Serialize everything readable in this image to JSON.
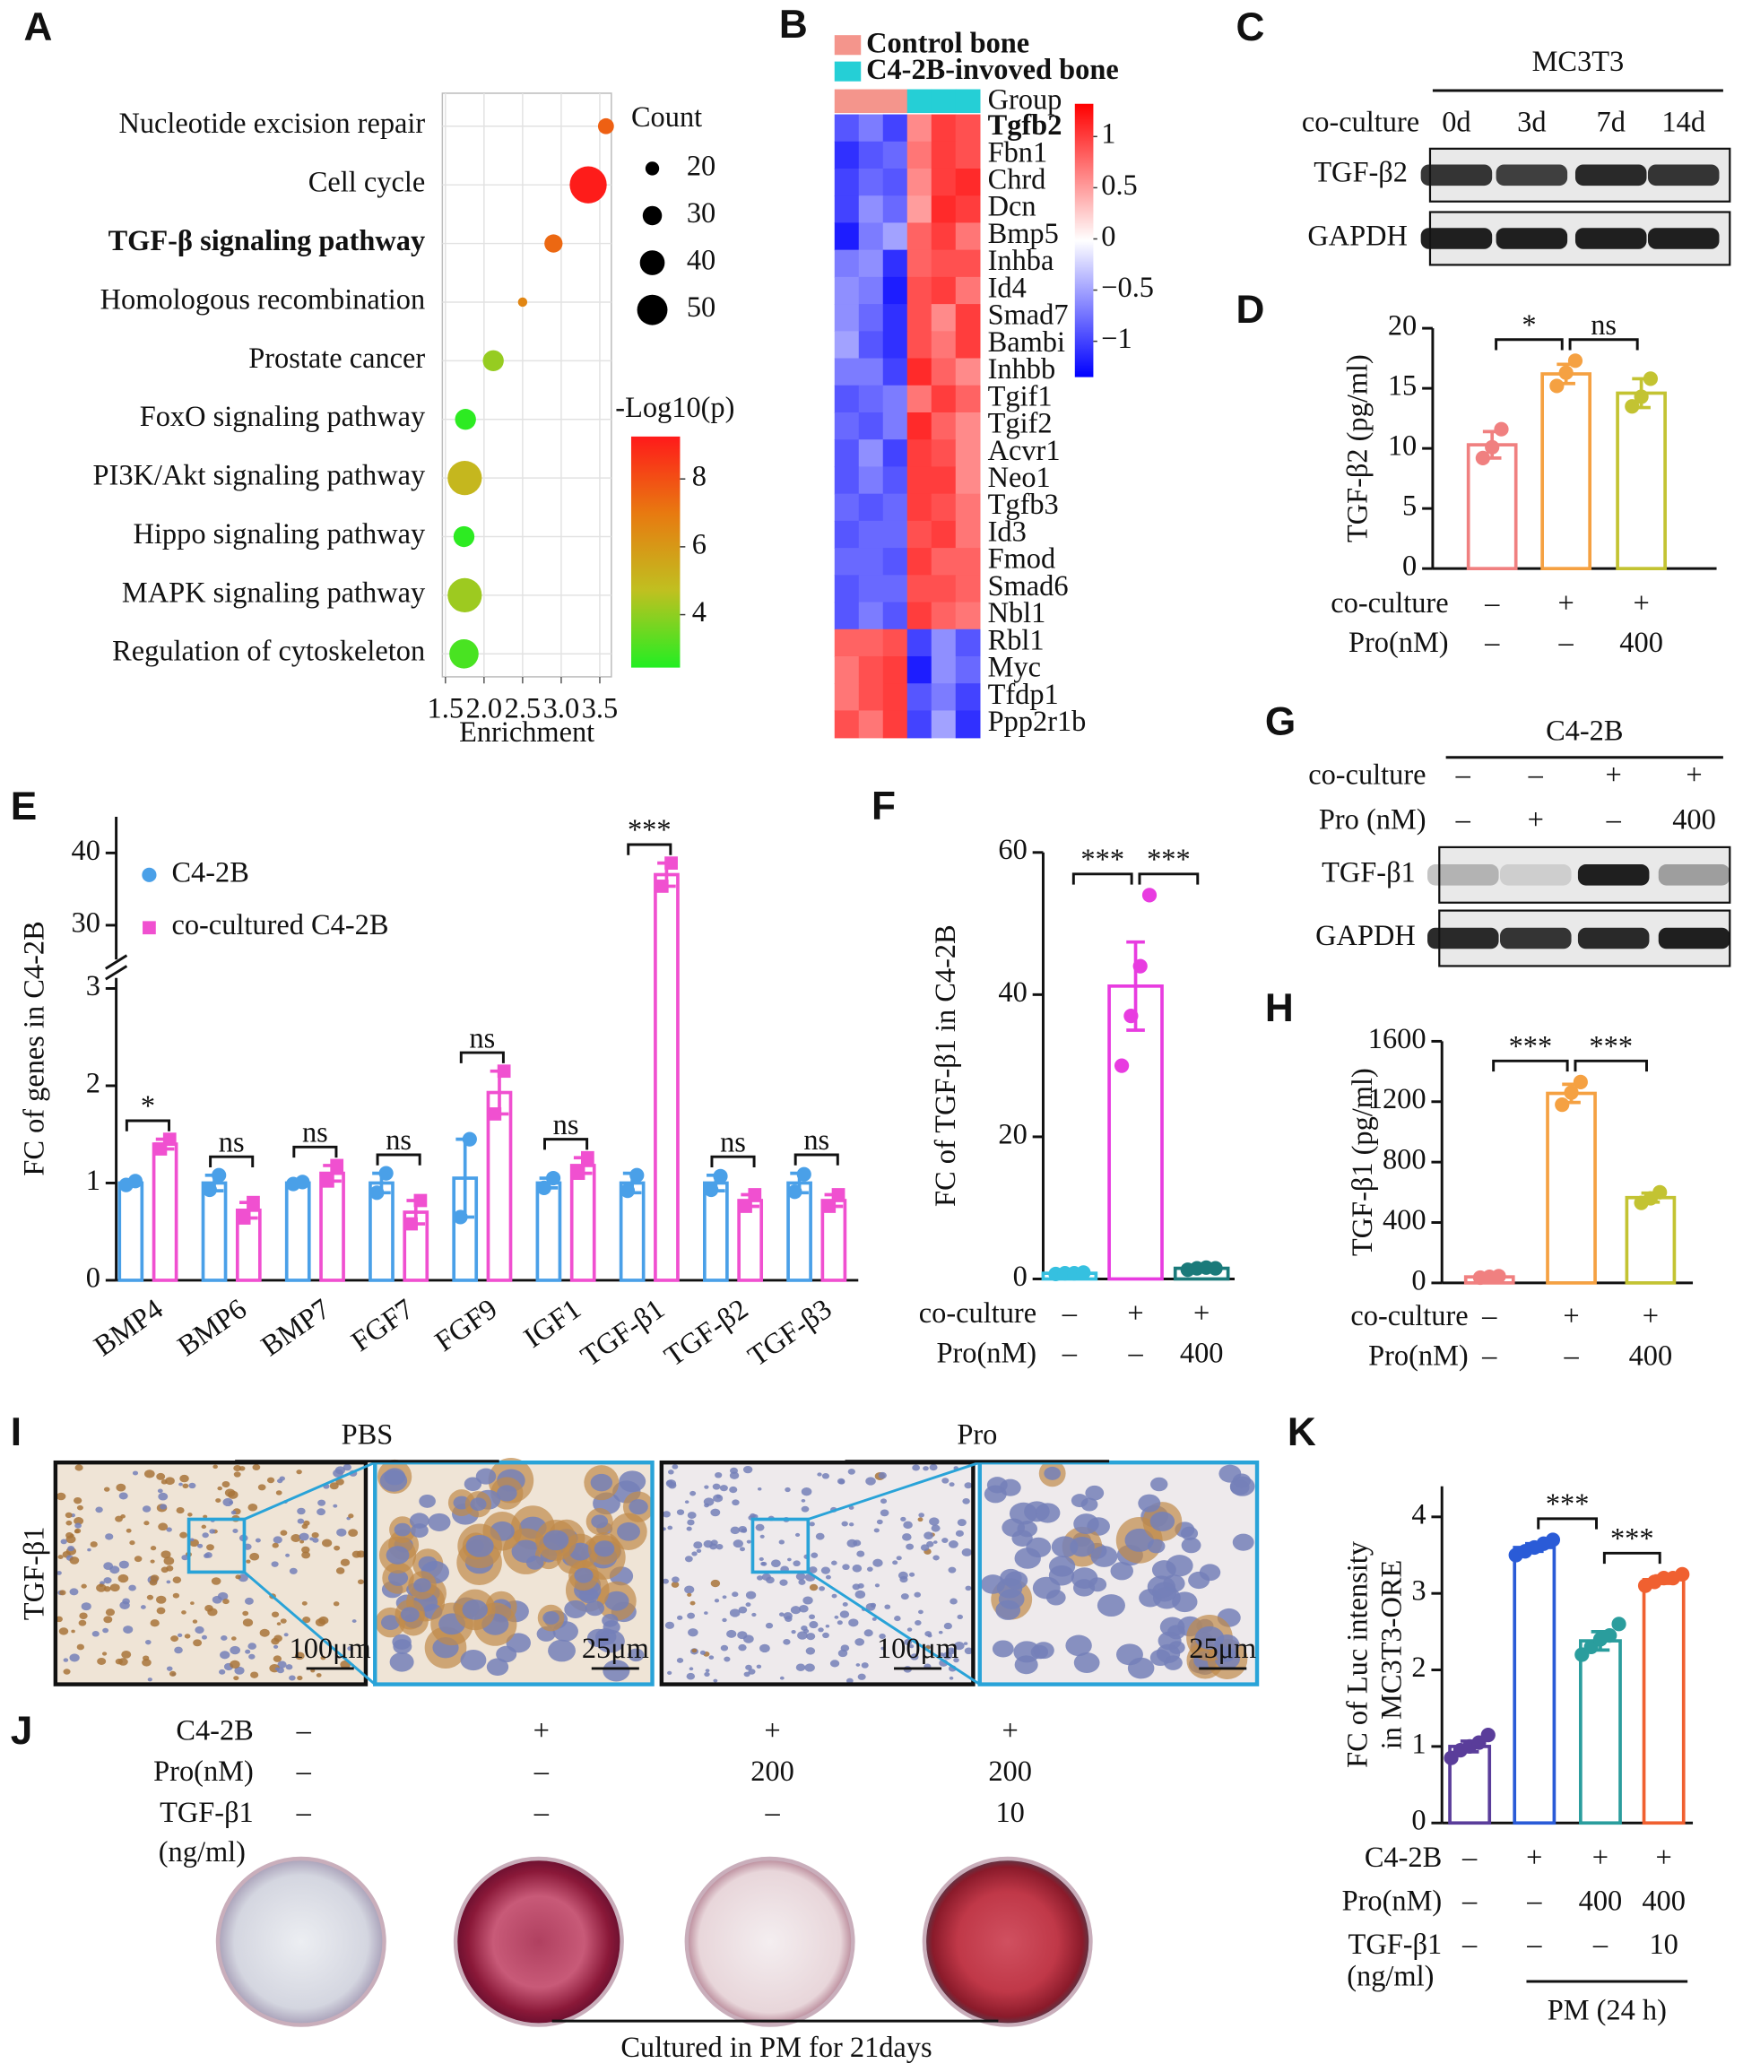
{
  "chart_data": [
    {
      "panel": "A",
      "type": "bubble",
      "categories": [
        "Nucleotide excision repair",
        "Cell cycle",
        "TGF-β signaling pathway",
        "Homologous recombination",
        "Prostate cancer",
        "FoxO signaling pathway",
        "PI3K/Akt signaling pathway",
        "Hippo signaling pathway",
        "MAPK signaling pathway",
        "Regulation of cytoskeleton"
      ],
      "x": [
        3.58,
        3.35,
        2.9,
        2.5,
        2.12,
        1.76,
        1.75,
        1.74,
        1.75,
        1.74
      ],
      "sizes": [
        24,
        62,
        28,
        12,
        33,
        33,
        57,
        33,
        57,
        48
      ],
      "neglog10p": [
        7.6,
        9.2,
        7.4,
        6.6,
        4.1,
        2.6,
        5.0,
        2.6,
        4.2,
        3.0
      ],
      "xlabel": "Enrichment",
      "xlim": [
        1.46,
        3.65
      ],
      "xticks": [
        1.5,
        {
          "value": 2,
          "label": "2.0"
        },
        2.5,
        {
          "value": 3,
          "label": "3.0"
        },
        3.5
      ],
      "size_title": "Count",
      "size_legend": [
        20,
        30,
        40,
        50
      ],
      "color_title": "-Log10(p)",
      "clim": [
        2.44,
        9.25
      ],
      "cticks": [
        4,
        6,
        8
      ],
      "cmap": [
        "#22ee22",
        "#c0c020",
        "#e87a10",
        "#ff1a1a"
      ],
      "grid": true,
      "highlight": [
        2
      ],
      "highlight_color": "#c8102e"
    },
    {
      "panel": "B",
      "type": "heatmap",
      "rows": [
        "Tgfb2",
        "Fbn1",
        "Chrd",
        "Dcn",
        "Bmp5",
        "Inhba",
        "Id4",
        "Smad7",
        "Bambi",
        "Inhbb",
        "Tgif1",
        "Tgif2",
        "Acvr1",
        "Neo1",
        "Tgfb3",
        "Id3",
        "Fmod",
        "Smad6",
        "Nbl1",
        "Rbl1",
        "Myc",
        "Tfdp1",
        "Ppp2r1b"
      ],
      "values": [
        [
          -0.9,
          -0.7,
          -1.0,
          0.6,
          1.0,
          0.9
        ],
        [
          -1.1,
          -0.9,
          -0.8,
          0.7,
          1.0,
          0.9
        ],
        [
          -1.0,
          -0.8,
          -0.9,
          0.6,
          1.0,
          1.1
        ],
        [
          -1.0,
          -0.6,
          -0.8,
          0.5,
          1.1,
          1.0
        ],
        [
          -1.2,
          -0.7,
          -0.5,
          0.8,
          1.0,
          0.7
        ],
        [
          -0.7,
          -0.6,
          -1.1,
          0.8,
          0.9,
          0.9
        ],
        [
          -0.6,
          -0.7,
          -1.2,
          0.9,
          1.0,
          0.7
        ],
        [
          -0.6,
          -0.8,
          -1.1,
          0.9,
          0.6,
          1.0
        ],
        [
          -0.5,
          -0.9,
          -1.1,
          0.9,
          0.7,
          1.0
        ],
        [
          -0.7,
          -0.7,
          -1.0,
          1.1,
          0.8,
          0.6
        ],
        [
          -0.9,
          -0.8,
          -0.7,
          0.7,
          1.0,
          0.8
        ],
        [
          -0.8,
          -0.9,
          -0.7,
          1.1,
          0.8,
          0.6
        ],
        [
          -0.9,
          -0.6,
          -1.0,
          1.0,
          0.9,
          0.6
        ],
        [
          -0.9,
          -0.7,
          -0.9,
          1.0,
          1.0,
          0.6
        ],
        [
          -0.8,
          -0.9,
          -0.8,
          1.0,
          0.9,
          0.7
        ],
        [
          -0.9,
          -0.8,
          -0.8,
          0.9,
          1.0,
          0.7
        ],
        [
          -0.8,
          -0.8,
          -0.9,
          1.0,
          0.8,
          0.8
        ],
        [
          -0.9,
          -0.8,
          -0.8,
          0.9,
          0.9,
          0.8
        ],
        [
          -0.9,
          -0.7,
          -0.9,
          1.0,
          0.8,
          0.7
        ],
        [
          0.8,
          0.8,
          0.9,
          -1.0,
          -0.6,
          -0.9
        ],
        [
          0.7,
          0.9,
          1.0,
          -1.2,
          -0.6,
          -0.8
        ],
        [
          0.7,
          0.9,
          1.0,
          -0.9,
          -0.7,
          -1.0
        ],
        [
          0.9,
          0.7,
          1.0,
          -1.0,
          -0.5,
          -1.1
        ]
      ],
      "groups": [
        {
          "name": "Control bone",
          "color": "#f4958c"
        },
        {
          "name": "C4-2B-invoved bone",
          "color": "#25cfd6"
        }
      ],
      "group_of_column": [
        0,
        0,
        0,
        1,
        1,
        1
      ],
      "group_label": "Group",
      "clim": [
        -1.35,
        1.32
      ],
      "cticks": [
        1,
        0.5,
        0,
        {
          "value": -0.5,
          "label": "−0.5"
        },
        {
          "value": -1,
          "label": "−1"
        }
      ],
      "cmap": [
        "#0000ff",
        "#ffffff",
        "#ff0000"
      ],
      "highlight": [
        0
      ],
      "highlight_color": "#c8102e"
    },
    {
      "panel": "D",
      "type": "bar",
      "ylabel": "TGF-β2 (pg/ml)",
      "ylim": [
        0,
        20
      ],
      "yticks": [
        0,
        5,
        10,
        15,
        20
      ],
      "values": [
        10.3,
        16.2,
        14.6
      ],
      "errors": [
        1.1,
        0.8,
        1.2
      ],
      "points": [
        [
          9.2,
          10.1,
          11.6
        ],
        [
          15.2,
          16.3,
          17.3
        ],
        [
          13.5,
          14.3,
          15.8
        ]
      ],
      "colors": [
        "#f08080",
        "#f5a142",
        "#c3c332"
      ],
      "conditions": [
        {
          "label": "co-culture",
          "values": [
            "–",
            "+",
            "+"
          ]
        },
        {
          "label": "Pro(nM)",
          "values": [
            "–",
            "–",
            "400"
          ]
        }
      ],
      "significance": [
        {
          "from": 0,
          "to": 1,
          "label": "*"
        },
        {
          "from": 1,
          "to": 2,
          "label": "ns"
        }
      ]
    },
    {
      "panel": "E",
      "type": "grouped_bar",
      "ylabel": "FC of genes in C4-2B",
      "ylim_break": [
        [
          0,
          3
        ],
        [
          26,
          45
        ]
      ],
      "yticks": [
        0,
        1,
        2,
        3,
        30,
        40
      ],
      "categories": [
        "BMP4",
        "BMP6",
        "BMP7",
        "FGF7",
        "FGF9",
        "IGF1",
        "TGF-β1",
        "TGF-β2",
        "TGF-β3"
      ],
      "series": [
        {
          "name": "C4-2B",
          "color": "#4aa0e8",
          "marker": "circle",
          "values": [
            1.0,
            1.0,
            1.0,
            1.0,
            1.05,
            1.0,
            1.0,
            1.0,
            1.0
          ],
          "errors": [
            0.02,
            0.08,
            0.02,
            0.1,
            0.4,
            0.05,
            0.1,
            0.08,
            0.1
          ],
          "points": [
            [
              0.98,
              1.02
            ],
            [
              0.93,
              1.08
            ],
            [
              0.99,
              1.01
            ],
            [
              0.9,
              1.1
            ],
            [
              0.65,
              1.45
            ],
            [
              0.95,
              1.05
            ],
            [
              0.92,
              1.08
            ],
            [
              0.93,
              1.07
            ],
            [
              0.91,
              1.09
            ]
          ]
        },
        {
          "name": "co-cultured C4-2B",
          "color": "#f050d0",
          "marker": "square",
          "values": [
            1.4,
            0.72,
            1.1,
            0.7,
            1.93,
            1.18,
            37,
            0.82,
            0.82
          ],
          "errors": [
            0.05,
            0.08,
            0.08,
            0.12,
            0.22,
            0.08,
            1.6,
            0.06,
            0.06
          ],
          "points": [
            [
              1.35,
              1.45
            ],
            [
              0.64,
              0.8
            ],
            [
              1.02,
              1.18
            ],
            [
              0.58,
              0.82
            ],
            [
              1.71,
              2.15
            ],
            [
              1.1,
              1.26
            ],
            [
              35.4,
              38.6
            ],
            [
              0.76,
              0.88
            ],
            [
              0.76,
              0.88
            ]
          ]
        }
      ],
      "significance": [
        "*",
        "ns",
        "ns",
        "ns",
        "ns",
        "ns",
        "***",
        "ns",
        "ns"
      ]
    },
    {
      "panel": "F",
      "type": "bar",
      "ylabel": "FC of TGF-β1 in C4-2B",
      "ylim": [
        0,
        60
      ],
      "yticks": [
        0,
        20,
        40,
        60
      ],
      "values": [
        0.8,
        41.2,
        1.5
      ],
      "errors": [
        0.1,
        6.2,
        0.2
      ],
      "points": [
        [
          0.7,
          0.8,
          0.8,
          0.9
        ],
        [
          30,
          37,
          44,
          54
        ],
        [
          1.3,
          1.5,
          1.6,
          1.5
        ]
      ],
      "colors": [
        "#35c0e0",
        "#e83ce0",
        "#1a7a7a"
      ],
      "conditions": [
        {
          "label": "co-culture",
          "values": [
            "–",
            "+",
            "+"
          ]
        },
        {
          "label": "Pro(nM)",
          "values": [
            "–",
            "–",
            "400"
          ]
        }
      ],
      "significance": [
        {
          "from": 0,
          "to": 1,
          "label": "***"
        },
        {
          "from": 1,
          "to": 2,
          "label": "***"
        }
      ]
    },
    {
      "panel": "H",
      "type": "bar",
      "ylabel": "TGF-β1 (pg/ml)",
      "ylim": [
        0,
        1600
      ],
      "yticks": [
        0,
        400,
        800,
        1200,
        1600
      ],
      "values": [
        40,
        1255,
        565
      ],
      "errors": [
        5,
        60,
        30
      ],
      "points": [
        [
          35,
          40,
          45
        ],
        [
          1180,
          1260,
          1330
        ],
        [
          530,
          560,
          600
        ]
      ],
      "colors": [
        "#f08080",
        "#f5a142",
        "#c3c332"
      ],
      "conditions": [
        {
          "label": "co-culture",
          "values": [
            "–",
            "+",
            "+"
          ]
        },
        {
          "label": "Pro(nM)",
          "values": [
            "–",
            "–",
            "400"
          ]
        }
      ],
      "significance": [
        {
          "from": 0,
          "to": 1,
          "label": "***"
        },
        {
          "from": 1,
          "to": 2,
          "label": "***"
        }
      ]
    },
    {
      "panel": "K",
      "type": "bar",
      "ylabel": [
        "FC of Luc intensity",
        "in MC3T3-ORE"
      ],
      "ylim": [
        0,
        4.4
      ],
      "yticks": [
        0,
        1,
        2,
        3,
        4
      ],
      "values": [
        1.0,
        3.6,
        2.38,
        3.18
      ],
      "errors": [
        0.07,
        0.05,
        0.12,
        0.05
      ],
      "points": [
        [
          0.85,
          0.95,
          1.0,
          1.05,
          1.15
        ],
        [
          3.5,
          3.55,
          3.6,
          3.65,
          3.7
        ],
        [
          2.2,
          2.3,
          2.4,
          2.45,
          2.6
        ],
        [
          3.1,
          3.15,
          3.2,
          3.2,
          3.25
        ]
      ],
      "colors": [
        "#5a3d9a",
        "#2a5bd7",
        "#2a9d9d",
        "#f06030"
      ],
      "conditions": [
        {
          "label": "C4-2B",
          "values": [
            "–",
            "+",
            "+",
            "+"
          ]
        },
        {
          "label": "Pro(nM)",
          "values": [
            "–",
            "–",
            "400",
            "400"
          ]
        },
        {
          "label": "TGF-β1",
          "sublabel": "(ng/ml)",
          "values": [
            "–",
            "–",
            "–",
            "10"
          ]
        }
      ],
      "significance": [
        {
          "from": 1,
          "to": 2,
          "label": "***"
        },
        {
          "from": 2,
          "to": 3,
          "label": "***"
        }
      ],
      "footer": "PM (24 h)"
    }
  ],
  "blots": [
    {
      "panel": "C",
      "title": "MC3T3",
      "conditions": [
        {
          "label": "co-culture",
          "values": [
            "0d",
            "3d",
            "7d",
            "14d"
          ]
        }
      ],
      "bands": [
        "TGF-β2",
        "GAPDH"
      ]
    },
    {
      "panel": "G",
      "title": "C4-2B",
      "conditions": [
        {
          "label": "co-culture",
          "values": [
            "–",
            "–",
            "+",
            "+"
          ]
        },
        {
          "label": "Pro (nM)",
          "values": [
            "–",
            "+",
            "–",
            "400"
          ]
        }
      ],
      "bands": [
        "TGF-β1",
        "GAPDH"
      ]
    }
  ],
  "histology": {
    "panel": "I",
    "groups": [
      "PBS",
      "Pro"
    ],
    "stain": "TGF-β1",
    "scale_bars": [
      "100μm",
      "25μm",
      "100μm",
      "25μm"
    ]
  },
  "osteogenesis": {
    "panel": "J",
    "conditions": [
      {
        "label": "C4-2B",
        "values": [
          "–",
          "+",
          "+",
          "+"
        ]
      },
      {
        "label": "Pro(nM)",
        "values": [
          "–",
          "–",
          "200",
          "200"
        ]
      },
      {
        "label": "TGF-β1",
        "sublabel": "(ng/ml)",
        "values": [
          "–",
          "–",
          "–",
          "10"
        ]
      }
    ],
    "caption": "Cultured in PM for 21days"
  }
}
